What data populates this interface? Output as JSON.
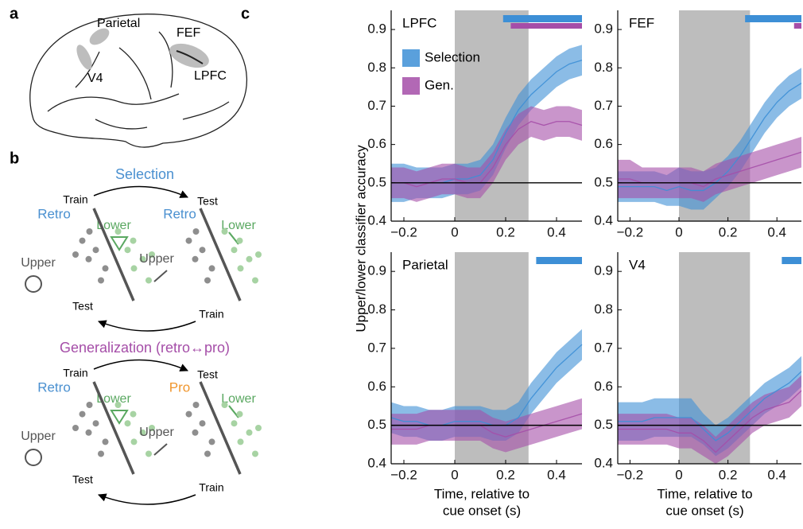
{
  "panel_labels": [
    "a",
    "b",
    "c"
  ],
  "brain": {
    "labels": [
      "Parietal",
      "FEF",
      "V4",
      "LPFC"
    ]
  },
  "diagram": {
    "blocks": [
      {
        "title": "Selection",
        "train_top": "Train",
        "test_top": "Test",
        "left_label": "Retro",
        "right_label": "Retro",
        "lower_left": "Lower",
        "lower_right": "Lower",
        "upper_left": "Upper",
        "upper_right": "Upper",
        "test_bottom": "Test",
        "train_bottom": "Train"
      },
      {
        "title": "Generalization (retro↔pro)",
        "train_top": "Train",
        "test_top": "Test",
        "left_label": "Retro",
        "right_label": "Pro",
        "lower_left": "Lower",
        "lower_right": "Lower",
        "upper_left": "Upper",
        "upper_right": "Upper",
        "test_bottom": "Test",
        "train_bottom": "Train"
      }
    ]
  },
  "ylabel": "Upper/lower classifier accuracy",
  "chart_data": [
    {
      "type": "line",
      "title": "LPFC",
      "x": [
        -0.25,
        -0.2,
        -0.15,
        -0.1,
        -0.05,
        0,
        0.05,
        0.1,
        0.15,
        0.2,
        0.25,
        0.3,
        0.35,
        0.4,
        0.45,
        0.5
      ],
      "xlim": [
        -0.25,
        0.5
      ],
      "ylim": [
        0.4,
        0.95
      ],
      "xticks": [
        {
          "value": -0.2,
          "label": "−0.2"
        },
        0,
        0.2,
        0.4
      ],
      "yticks": [
        0.4,
        0.5,
        0.6,
        0.7,
        0.8,
        0.9
      ],
      "shade": [
        0,
        0.29
      ],
      "hline": 0.5,
      "series": [
        {
          "name": "Selection",
          "color": "#3d8fd6",
          "sig": [
            0.19,
            0.5
          ],
          "values": [
            0.5,
            0.5,
            0.5,
            0.5,
            0.5,
            0.51,
            0.51,
            0.52,
            0.56,
            0.63,
            0.69,
            0.73,
            0.76,
            0.79,
            0.81,
            0.82
          ],
          "lower": [
            0.45,
            0.45,
            0.46,
            0.46,
            0.46,
            0.47,
            0.47,
            0.48,
            0.52,
            0.59,
            0.65,
            0.69,
            0.72,
            0.75,
            0.77,
            0.78
          ],
          "upper": [
            0.55,
            0.55,
            0.54,
            0.54,
            0.54,
            0.55,
            0.55,
            0.56,
            0.6,
            0.67,
            0.73,
            0.77,
            0.8,
            0.83,
            0.85,
            0.86
          ]
        },
        {
          "name": "Gen.",
          "color": "#a54ea8",
          "sig": [
            0.22,
            0.5
          ],
          "values": [
            0.5,
            0.5,
            0.49,
            0.5,
            0.51,
            0.51,
            0.5,
            0.5,
            0.54,
            0.6,
            0.64,
            0.66,
            0.65,
            0.66,
            0.66,
            0.65
          ],
          "lower": [
            0.46,
            0.46,
            0.45,
            0.46,
            0.47,
            0.47,
            0.46,
            0.46,
            0.5,
            0.56,
            0.6,
            0.62,
            0.61,
            0.62,
            0.62,
            0.61
          ],
          "upper": [
            0.54,
            0.54,
            0.53,
            0.54,
            0.55,
            0.55,
            0.54,
            0.54,
            0.58,
            0.64,
            0.68,
            0.7,
            0.69,
            0.7,
            0.7,
            0.69
          ]
        }
      ]
    },
    {
      "type": "line",
      "title": "FEF",
      "x": [
        -0.25,
        -0.2,
        -0.15,
        -0.1,
        -0.05,
        0,
        0.05,
        0.1,
        0.15,
        0.2,
        0.25,
        0.3,
        0.35,
        0.4,
        0.45,
        0.5
      ],
      "xlim": [
        -0.25,
        0.5
      ],
      "ylim": [
        0.4,
        0.95
      ],
      "xticks": [
        {
          "value": -0.2,
          "label": "−0.2"
        },
        0,
        0.2,
        0.4
      ],
      "yticks": [
        0.4,
        0.5,
        0.6,
        0.7,
        0.8,
        0.9
      ],
      "shade": [
        0,
        0.29
      ],
      "hline": 0.5,
      "series": [
        {
          "color": "#3d8fd6",
          "sig": [
            0.27,
            0.5
          ],
          "values": [
            0.49,
            0.49,
            0.49,
            0.49,
            0.48,
            0.49,
            0.48,
            0.48,
            0.5,
            0.53,
            0.57,
            0.62,
            0.67,
            0.71,
            0.74,
            0.76
          ],
          "lower": [
            0.45,
            0.45,
            0.45,
            0.45,
            0.44,
            0.44,
            0.43,
            0.43,
            0.46,
            0.49,
            0.53,
            0.58,
            0.63,
            0.67,
            0.7,
            0.72
          ],
          "upper": [
            0.53,
            0.53,
            0.53,
            0.53,
            0.52,
            0.54,
            0.53,
            0.53,
            0.54,
            0.57,
            0.61,
            0.66,
            0.71,
            0.75,
            0.78,
            0.8
          ]
        },
        {
          "color": "#a54ea8",
          "sig": [
            0.47,
            0.5
          ],
          "values": [
            0.51,
            0.51,
            0.5,
            0.5,
            0.5,
            0.5,
            0.5,
            0.49,
            0.51,
            0.52,
            0.53,
            0.54,
            0.55,
            0.56,
            0.57,
            0.58
          ],
          "lower": [
            0.46,
            0.46,
            0.46,
            0.46,
            0.46,
            0.46,
            0.46,
            0.45,
            0.47,
            0.48,
            0.49,
            0.5,
            0.51,
            0.52,
            0.53,
            0.54
          ],
          "upper": [
            0.56,
            0.56,
            0.54,
            0.54,
            0.54,
            0.54,
            0.54,
            0.53,
            0.55,
            0.56,
            0.57,
            0.58,
            0.59,
            0.6,
            0.61,
            0.62
          ]
        }
      ]
    },
    {
      "type": "line",
      "title": "Parietal",
      "x": [
        -0.25,
        -0.2,
        -0.15,
        -0.1,
        -0.05,
        0,
        0.05,
        0.1,
        0.15,
        0.2,
        0.25,
        0.3,
        0.35,
        0.4,
        0.45,
        0.5
      ],
      "xlim": [
        -0.25,
        0.5
      ],
      "ylim": [
        0.4,
        0.95
      ],
      "xticks": [
        {
          "value": -0.2,
          "label": "−0.2"
        },
        0,
        0.2,
        0.4
      ],
      "yticks": [
        0.4,
        0.5,
        0.6,
        0.7,
        0.8,
        0.9
      ],
      "shade": [
        0,
        0.29
      ],
      "hline": 0.5,
      "xlabel": [
        "Time, relative to",
        "cue onset (s)"
      ],
      "series": [
        {
          "color": "#3d8fd6",
          "sig": [
            0.32,
            0.5
          ],
          "values": [
            0.52,
            0.51,
            0.51,
            0.5,
            0.5,
            0.51,
            0.51,
            0.51,
            0.5,
            0.5,
            0.52,
            0.57,
            0.61,
            0.65,
            0.68,
            0.71
          ],
          "lower": [
            0.48,
            0.47,
            0.47,
            0.46,
            0.46,
            0.47,
            0.47,
            0.47,
            0.46,
            0.46,
            0.48,
            0.53,
            0.57,
            0.61,
            0.64,
            0.67
          ],
          "upper": [
            0.56,
            0.55,
            0.55,
            0.54,
            0.54,
            0.55,
            0.55,
            0.55,
            0.54,
            0.54,
            0.56,
            0.61,
            0.65,
            0.69,
            0.72,
            0.75
          ]
        },
        {
          "color": "#a54ea8",
          "values": [
            0.49,
            0.49,
            0.49,
            0.5,
            0.5,
            0.5,
            0.5,
            0.5,
            0.48,
            0.47,
            0.48,
            0.49,
            0.5,
            0.51,
            0.52,
            0.53
          ],
          "lower": [
            0.45,
            0.45,
            0.45,
            0.46,
            0.46,
            0.46,
            0.46,
            0.46,
            0.44,
            0.43,
            0.44,
            0.45,
            0.46,
            0.47,
            0.48,
            0.49
          ],
          "upper": [
            0.53,
            0.53,
            0.53,
            0.54,
            0.54,
            0.54,
            0.54,
            0.54,
            0.52,
            0.51,
            0.52,
            0.53,
            0.54,
            0.55,
            0.56,
            0.57
          ]
        }
      ]
    },
    {
      "type": "line",
      "title": "V4",
      "x": [
        -0.25,
        -0.2,
        -0.15,
        -0.1,
        -0.05,
        0,
        0.05,
        0.1,
        0.15,
        0.2,
        0.25,
        0.3,
        0.35,
        0.4,
        0.45,
        0.5
      ],
      "xlim": [
        -0.25,
        0.5
      ],
      "ylim": [
        0.4,
        0.95
      ],
      "xticks": [
        {
          "value": -0.2,
          "label": "−0.2"
        },
        0,
        0.2,
        0.4
      ],
      "yticks": [
        0.4,
        0.5,
        0.6,
        0.7,
        0.8,
        0.9
      ],
      "shade": [
        0,
        0.29
      ],
      "hline": 0.5,
      "xlabel": [
        "Time, relative to",
        "cue onset (s)"
      ],
      "series": [
        {
          "color": "#3d8fd6",
          "sig": [
            0.42,
            0.5
          ],
          "values": [
            0.51,
            0.51,
            0.51,
            0.52,
            0.52,
            0.52,
            0.52,
            0.49,
            0.46,
            0.48,
            0.51,
            0.54,
            0.57,
            0.59,
            0.61,
            0.64
          ],
          "lower": [
            0.46,
            0.46,
            0.46,
            0.47,
            0.47,
            0.47,
            0.47,
            0.45,
            0.42,
            0.44,
            0.47,
            0.5,
            0.53,
            0.55,
            0.57,
            0.6
          ],
          "upper": [
            0.56,
            0.56,
            0.56,
            0.57,
            0.57,
            0.57,
            0.57,
            0.53,
            0.5,
            0.52,
            0.55,
            0.58,
            0.61,
            0.63,
            0.65,
            0.68
          ]
        },
        {
          "color": "#a54ea8",
          "values": [
            0.49,
            0.49,
            0.49,
            0.49,
            0.49,
            0.48,
            0.48,
            0.46,
            0.43,
            0.46,
            0.49,
            0.52,
            0.54,
            0.55,
            0.56,
            0.59
          ],
          "lower": [
            0.45,
            0.45,
            0.45,
            0.45,
            0.45,
            0.44,
            0.44,
            0.42,
            0.4,
            0.42,
            0.45,
            0.48,
            0.5,
            0.51,
            0.52,
            0.55
          ],
          "upper": [
            0.53,
            0.53,
            0.53,
            0.53,
            0.53,
            0.52,
            0.52,
            0.5,
            0.47,
            0.5,
            0.53,
            0.56,
            0.58,
            0.59,
            0.6,
            0.63
          ]
        }
      ]
    }
  ]
}
